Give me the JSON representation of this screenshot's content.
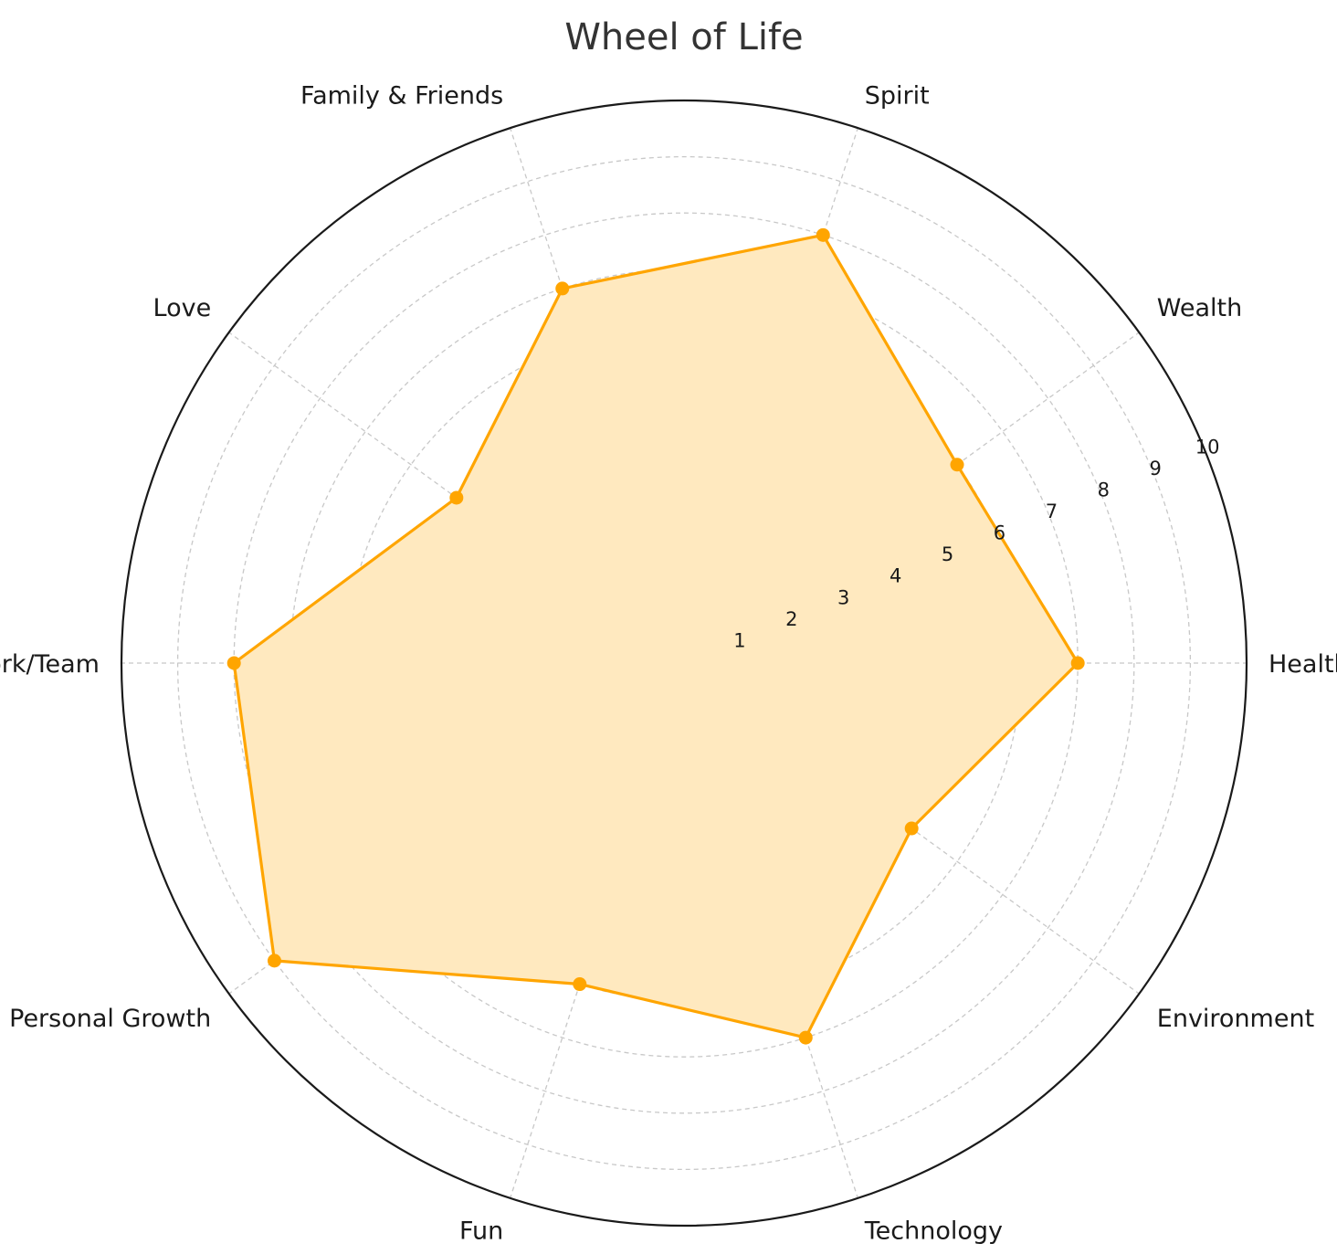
{
  "chart_data": {
    "type": "radar",
    "title": "Wheel of Life",
    "categories": [
      "Health",
      "Wealth",
      "Spirit",
      "Family & Friends",
      "Love",
      "Work/Team",
      "Personal Growth",
      "Fun",
      "Technology",
      "Environment"
    ],
    "series": [
      {
        "values": [
          7,
          6,
          8,
          7,
          5,
          8,
          9,
          6,
          7,
          5
        ]
      }
    ],
    "rlim": [
      0,
      10
    ],
    "rticks": [
      "1",
      "2",
      "3",
      "4",
      "5",
      "6",
      "7",
      "8",
      "9",
      "10"
    ],
    "grid": true,
    "colors": {
      "line": "#FFA500",
      "fill": "#FFE9BF",
      "grid": "#c8c8c8",
      "outer_circle": "#1a1a1a"
    }
  }
}
